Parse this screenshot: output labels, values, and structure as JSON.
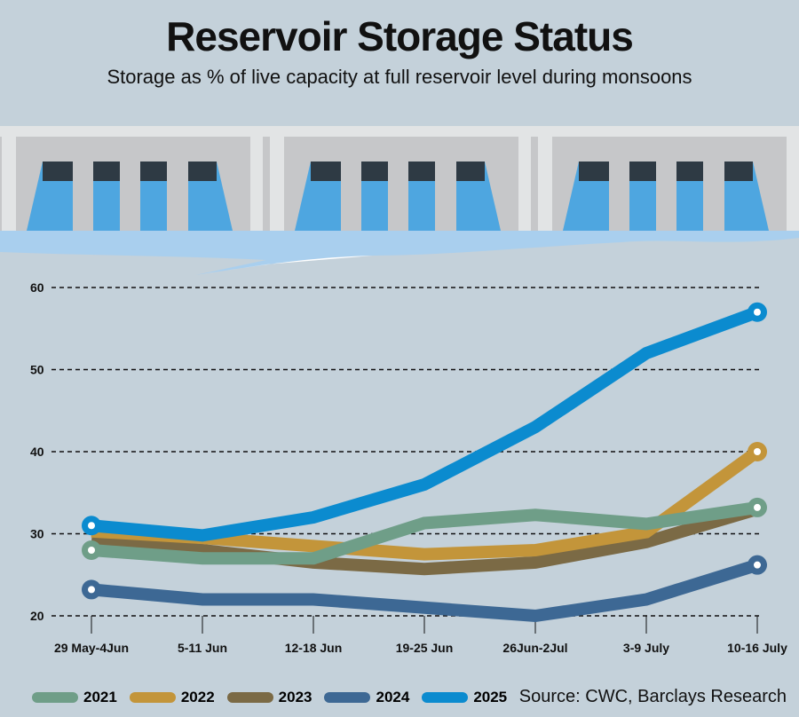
{
  "title": "Reservoir Storage Status",
  "subtitle": "Storage as % of live capacity at full reservoir level during monsoons",
  "source": "Source: CWC, Barclays Research",
  "chart_data": {
    "type": "line",
    "title": "Reservoir Storage Status",
    "ylabel": "Storage as % of live capacity",
    "ylim": [
      20,
      60
    ],
    "yticks": [
      20,
      30,
      40,
      50,
      60
    ],
    "grid": true,
    "legend_position": "bottom-left",
    "categories": [
      "29 May-4Jun",
      "5-11 Jun",
      "12-18 Jun",
      "19-25 Jun",
      "26Jun-2Jul",
      "3-9 July",
      "10-16 July"
    ],
    "series": [
      {
        "name": "2021",
        "color": "#6f9e88",
        "values": [
          28,
          27,
          27,
          31.3,
          32.3,
          31.2,
          33.2
        ]
      },
      {
        "name": "2022",
        "color": "#c3953a",
        "values": [
          30.3,
          29.5,
          28.5,
          27.5,
          28,
          30.2,
          40
        ]
      },
      {
        "name": "2023",
        "color": "#7b6a45",
        "values": [
          29,
          28,
          26.5,
          25.7,
          26.5,
          29,
          33
        ]
      },
      {
        "name": "2024",
        "color": "#3d6894",
        "values": [
          23.2,
          22,
          22,
          21,
          20,
          22,
          26.2
        ]
      },
      {
        "name": "2025",
        "color": "#0b8bcf",
        "values": [
          31,
          29.8,
          32,
          36,
          43,
          52,
          57
        ]
      }
    ]
  }
}
